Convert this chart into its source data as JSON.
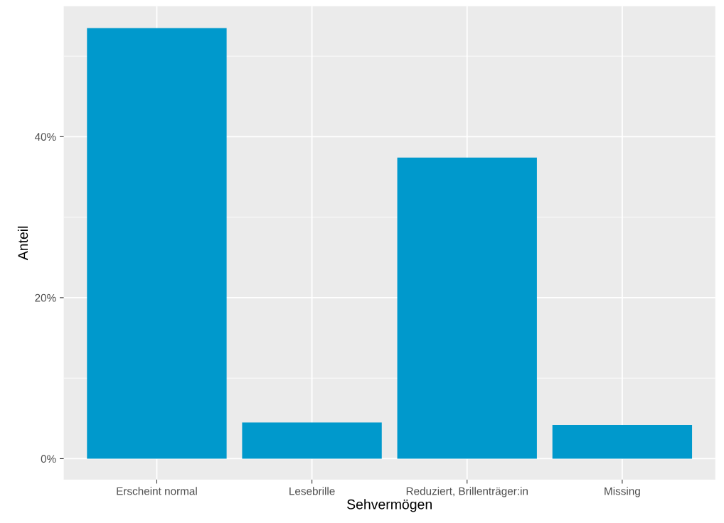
{
  "chart_data": {
    "type": "bar",
    "xlabel": "Sehvermögen",
    "ylabel": "Anteil",
    "categories": [
      "Erscheint normal",
      "Lesebrille",
      "Reduziert, Brillenträger:in",
      "Missing"
    ],
    "values": [
      53.5,
      4.5,
      37.4,
      4.2
    ],
    "color": "#0099cc",
    "ylim": [
      -2.6,
      56.2
    ],
    "yticks": [
      {
        "value": 0,
        "label": "0%"
      },
      {
        "value": 10,
        "label": null
      },
      {
        "value": 20,
        "label": "20%"
      },
      {
        "value": 30,
        "label": null
      },
      {
        "value": 40,
        "label": "40%"
      },
      {
        "value": 50,
        "label": null
      }
    ],
    "grid": true,
    "legend": false
  }
}
